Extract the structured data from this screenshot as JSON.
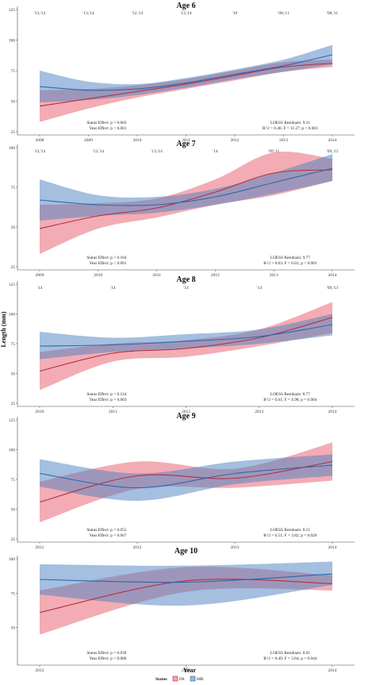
{
  "figure": {
    "ylabel": "Length (mm)",
    "xlabel": "Year",
    "legend": {
      "title": "Status",
      "items": [
        {
          "label": "FR",
          "color": "#e8596a"
        },
        {
          "label": "MR",
          "color": "#4a7fc0"
        }
      ]
    }
  },
  "chart_data": [
    {
      "type": "line",
      "title": "Age 6",
      "xlim": [
        2008,
        2014
      ],
      "ylim": [
        25,
        125
      ],
      "xticks": [
        2008,
        2009,
        2010,
        2011,
        2012,
        2013,
        2014
      ],
      "yticks": [
        25,
        50,
        75,
        100,
        125
      ],
      "top_labels": [
        {
          "x": 2008,
          "text": "'13,'14"
        },
        {
          "x": 2009,
          "text": "'13,'14"
        },
        {
          "x": 2010,
          "text": "'12,'14"
        },
        {
          "x": 2011,
          "text": "'13,'14"
        },
        {
          "x": 2012,
          "text": "'10"
        },
        {
          "x": 2013,
          "text": "'08,'11"
        },
        {
          "x": 2014,
          "text": "'08,'11"
        }
      ],
      "annotation_left": [
        "Status Effect: p = 0.003",
        "Year Effect: p < 0.001"
      ],
      "annotation_right": [
        "LOESS Residuals: 9.31",
        "R^2 = 0.46; F = 11.27; p < 0.001"
      ],
      "x": [
        2008,
        2009,
        2010,
        2011,
        2012,
        2013,
        2014
      ],
      "series": [
        {
          "name": "FR",
          "values": [
            46,
            52,
            58,
            64,
            71,
            78,
            81
          ],
          "lower": [
            33,
            44,
            53,
            60,
            67,
            74,
            78
          ],
          "upper": [
            59,
            60,
            63,
            68,
            75,
            82,
            84
          ]
        },
        {
          "name": "MR",
          "values": [
            62,
            59,
            60,
            65,
            72,
            79,
            88
          ],
          "lower": [
            49,
            51,
            55,
            61,
            68,
            74,
            80
          ],
          "upper": [
            75,
            66,
            64,
            69,
            76,
            84,
            96
          ]
        }
      ]
    },
    {
      "type": "line",
      "title": "Age 7",
      "xlim": [
        2009,
        2014
      ],
      "ylim": [
        25,
        100
      ],
      "xticks": [
        2009,
        2010,
        2011,
        2012,
        2013,
        2014
      ],
      "yticks": [
        25,
        50,
        75,
        100
      ],
      "top_labels": [
        {
          "x": 2009,
          "text": "'13,'14"
        },
        {
          "x": 2010,
          "text": "'13,'14"
        },
        {
          "x": 2011,
          "text": "'13,'14"
        },
        {
          "x": 2012,
          "text": "'14"
        },
        {
          "x": 2013,
          "text": "'09,'11"
        },
        {
          "x": 2014,
          "text": "'09,'12"
        }
      ],
      "annotation_left": [
        "Status Effect: p = 0.164",
        "Year Effect: p < 0.001"
      ],
      "annotation_right": [
        "LOESS Residuals: 9.77",
        "R^2 = 0.63; F = 6.01; p < 0.001"
      ],
      "x": [
        2009,
        2010,
        2011,
        2012,
        2013,
        2014
      ],
      "series": [
        {
          "name": "FR",
          "values": [
            49,
            57,
            62,
            72,
            84,
            86
          ],
          "lower": [
            33,
            49,
            56,
            64,
            70,
            79
          ],
          "upper": [
            64,
            65,
            68,
            80,
            97,
            93
          ]
        },
        {
          "name": "MR",
          "values": [
            67,
            64,
            64,
            69,
            78,
            87
          ],
          "lower": [
            54,
            57,
            59,
            64,
            71,
            79
          ],
          "upper": [
            80,
            70,
            69,
            74,
            84,
            96
          ]
        }
      ]
    },
    {
      "type": "line",
      "title": "Age 8",
      "xlim": [
        2010,
        2014
      ],
      "ylim": [
        25,
        125
      ],
      "xticks": [
        2010,
        2011,
        2012,
        2013,
        2014
      ],
      "yticks": [
        25,
        50,
        75,
        100,
        125
      ],
      "top_labels": [
        {
          "x": 2010,
          "text": "'14"
        },
        {
          "x": 2011,
          "text": "'14"
        },
        {
          "x": 2012,
          "text": "'14"
        },
        {
          "x": 2013,
          "text": "'14"
        },
        {
          "x": 2014,
          "text": "'09,'13"
        }
      ],
      "annotation_left": [
        "Status Effect: p = 0.124",
        "Year Effect: p = 0.003"
      ],
      "annotation_right": [
        "LOESS Residuals: 8.77",
        "R^2 = 0.61; F = 4.98; p = 0.004"
      ],
      "x": [
        2010,
        2011,
        2012,
        2013,
        2014
      ],
      "series": [
        {
          "name": "FR",
          "values": [
            52,
            67,
            71,
            80,
            97
          ],
          "lower": [
            36,
            60,
            64,
            73,
            84
          ],
          "upper": [
            68,
            75,
            78,
            87,
            110
          ]
        },
        {
          "name": "MR",
          "values": [
            73,
            74,
            77,
            81,
            91
          ],
          "lower": [
            62,
            68,
            71,
            75,
            82
          ],
          "upper": [
            85,
            80,
            83,
            87,
            100
          ]
        }
      ]
    },
    {
      "type": "line",
      "title": "Age 9",
      "xlim": [
        2011,
        2014
      ],
      "ylim": [
        25,
        125
      ],
      "xticks": [
        2011,
        2012,
        2013,
        2014
      ],
      "yticks": [
        25,
        50,
        75,
        100,
        125
      ],
      "top_labels": [],
      "annotation_left": [
        "Status Effect: p = 0.055",
        "Year Effect: p = 0.067"
      ],
      "annotation_right": [
        "LOESS Residuals: 8.51",
        "R^2 = 0.51; F = 3.82; p = 0.020"
      ],
      "x": [
        2011,
        2012,
        2013,
        2014
      ],
      "series": [
        {
          "name": "FR",
          "values": [
            56,
            78,
            76,
            90
          ],
          "lower": [
            39,
            67,
            68,
            74
          ],
          "upper": [
            73,
            90,
            84,
            106
          ]
        },
        {
          "name": "MR",
          "values": [
            80,
            68,
            80,
            87
          ],
          "lower": [
            69,
            57,
            71,
            78
          ],
          "upper": [
            92,
            80,
            90,
            96
          ]
        }
      ]
    },
    {
      "type": "line",
      "title": "Age 10",
      "xlim": [
        2012,
        2014
      ],
      "ylim": [
        25,
        100
      ],
      "xticks": [
        2012,
        2013,
        2014
      ],
      "yticks": [
        50,
        75,
        100
      ],
      "top_labels": [],
      "annotation_left": [
        "Status Effect: p = 0.039",
        "Year Effect: p = 0.086"
      ],
      "annotation_right": [
        "LOESS Residuals: 8.01",
        "R^2 = 0.49; F = 3.64; p = 0.044"
      ],
      "x": [
        2012,
        2013,
        2014
      ],
      "series": [
        {
          "name": "FR",
          "values": [
            61,
            84,
            82
          ],
          "lower": [
            45,
            76,
            77
          ],
          "upper": [
            77,
            94,
            88
          ]
        },
        {
          "name": "MR",
          "values": [
            85,
            83,
            89
          ],
          "lower": [
            74,
            66,
            81
          ],
          "upper": [
            96,
            95,
            98
          ]
        }
      ]
    }
  ]
}
